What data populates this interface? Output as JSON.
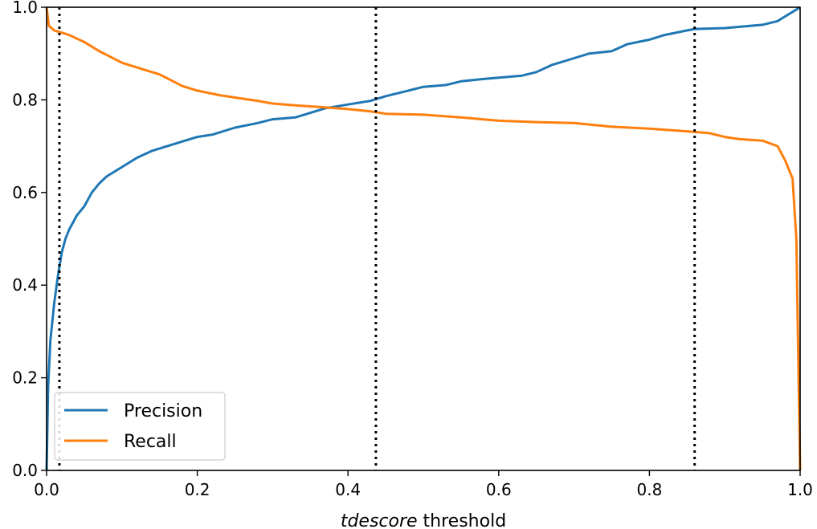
{
  "chart_data": {
    "type": "line",
    "title": "",
    "xlabel_italic": "tdescore",
    "xlabel_rest": " threshold",
    "ylabel": "",
    "xlim": [
      0.0,
      1.0
    ],
    "ylim": [
      0.0,
      1.0
    ],
    "x_ticks": [
      "0.0",
      "0.2",
      "0.4",
      "0.6",
      "0.8",
      "1.0"
    ],
    "y_ticks": [
      "0.0",
      "0.2",
      "0.4",
      "0.6",
      "0.8",
      "1.0"
    ],
    "grid": false,
    "legend_position": "lower-left",
    "vertical_lines": [
      0.017,
      0.437,
      0.86
    ],
    "series": [
      {
        "name": "Precision",
        "color": "#1f77b4",
        "points": [
          [
            0.0,
            0.0
          ],
          [
            0.002,
            0.18
          ],
          [
            0.005,
            0.28
          ],
          [
            0.01,
            0.36
          ],
          [
            0.015,
            0.42
          ],
          [
            0.02,
            0.47
          ],
          [
            0.025,
            0.5
          ],
          [
            0.03,
            0.52
          ],
          [
            0.04,
            0.55
          ],
          [
            0.05,
            0.57
          ],
          [
            0.06,
            0.6
          ],
          [
            0.07,
            0.62
          ],
          [
            0.08,
            0.635
          ],
          [
            0.1,
            0.655
          ],
          [
            0.12,
            0.675
          ],
          [
            0.14,
            0.69
          ],
          [
            0.16,
            0.7
          ],
          [
            0.18,
            0.71
          ],
          [
            0.2,
            0.72
          ],
          [
            0.22,
            0.725
          ],
          [
            0.25,
            0.74
          ],
          [
            0.28,
            0.75
          ],
          [
            0.3,
            0.758
          ],
          [
            0.33,
            0.762
          ],
          [
            0.35,
            0.772
          ],
          [
            0.37,
            0.782
          ],
          [
            0.4,
            0.79
          ],
          [
            0.43,
            0.798
          ],
          [
            0.45,
            0.808
          ],
          [
            0.48,
            0.82
          ],
          [
            0.5,
            0.828
          ],
          [
            0.53,
            0.832
          ],
          [
            0.55,
            0.84
          ],
          [
            0.58,
            0.845
          ],
          [
            0.6,
            0.848
          ],
          [
            0.63,
            0.852
          ],
          [
            0.65,
            0.86
          ],
          [
            0.67,
            0.875
          ],
          [
            0.7,
            0.89
          ],
          [
            0.72,
            0.9
          ],
          [
            0.75,
            0.905
          ],
          [
            0.77,
            0.92
          ],
          [
            0.8,
            0.93
          ],
          [
            0.82,
            0.94
          ],
          [
            0.85,
            0.95
          ],
          [
            0.86,
            0.953
          ],
          [
            0.9,
            0.955
          ],
          [
            0.95,
            0.962
          ],
          [
            0.97,
            0.97
          ],
          [
            0.98,
            0.98
          ],
          [
            0.99,
            0.99
          ],
          [
            1.0,
            1.0
          ]
        ]
      },
      {
        "name": "Recall",
        "color": "#ff7f0e",
        "points": [
          [
            0.0,
            1.0
          ],
          [
            0.003,
            0.96
          ],
          [
            0.01,
            0.95
          ],
          [
            0.02,
            0.945
          ],
          [
            0.03,
            0.94
          ],
          [
            0.05,
            0.925
          ],
          [
            0.07,
            0.905
          ],
          [
            0.1,
            0.88
          ],
          [
            0.13,
            0.865
          ],
          [
            0.15,
            0.855
          ],
          [
            0.18,
            0.83
          ],
          [
            0.2,
            0.82
          ],
          [
            0.23,
            0.81
          ],
          [
            0.25,
            0.805
          ],
          [
            0.28,
            0.798
          ],
          [
            0.3,
            0.792
          ],
          [
            0.33,
            0.788
          ],
          [
            0.36,
            0.785
          ],
          [
            0.4,
            0.78
          ],
          [
            0.43,
            0.775
          ],
          [
            0.45,
            0.77
          ],
          [
            0.5,
            0.768
          ],
          [
            0.55,
            0.762
          ],
          [
            0.6,
            0.755
          ],
          [
            0.65,
            0.752
          ],
          [
            0.7,
            0.75
          ],
          [
            0.75,
            0.742
          ],
          [
            0.8,
            0.738
          ],
          [
            0.85,
            0.732
          ],
          [
            0.88,
            0.728
          ],
          [
            0.9,
            0.72
          ],
          [
            0.92,
            0.715
          ],
          [
            0.95,
            0.712
          ],
          [
            0.97,
            0.7
          ],
          [
            0.98,
            0.67
          ],
          [
            0.99,
            0.63
          ],
          [
            0.995,
            0.5
          ],
          [
            0.998,
            0.2
          ],
          [
            1.0,
            0.0
          ]
        ]
      }
    ]
  }
}
